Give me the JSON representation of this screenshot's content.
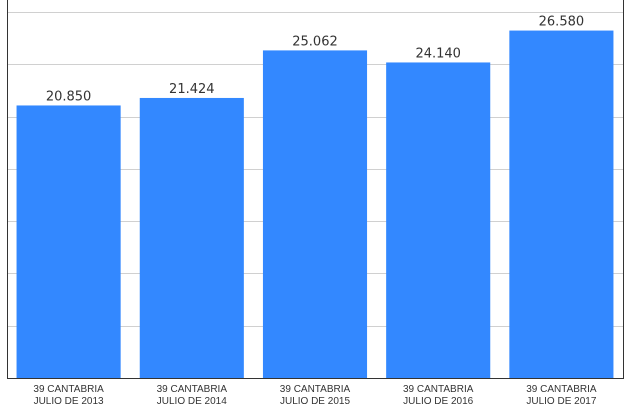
{
  "chart_data": {
    "type": "bar",
    "title": "",
    "xlabel": "",
    "ylabel": "",
    "categories": [
      [
        "39 CANTABRIA",
        "JULIO DE 2013"
      ],
      [
        "39 CANTABRIA",
        "JULIO DE 2014"
      ],
      [
        "39 CANTABRIA",
        "JULIO DE 2015"
      ],
      [
        "39 CANTABRIA",
        "JULIO DE 2016"
      ],
      [
        "39 CANTABRIA",
        "JULIO DE 2017"
      ]
    ],
    "values": [
      20850,
      21424,
      25062,
      24140,
      26580
    ],
    "value_labels": [
      "20.850",
      "21.424",
      "25.062",
      "24.140",
      "26.580"
    ],
    "ylim": [
      0,
      28000
    ],
    "grid": true,
    "legend": "none",
    "colors": {
      "bar": "#3388ff",
      "grid": "#d0d0d0",
      "axis": "#333333",
      "text": "#333333"
    }
  }
}
